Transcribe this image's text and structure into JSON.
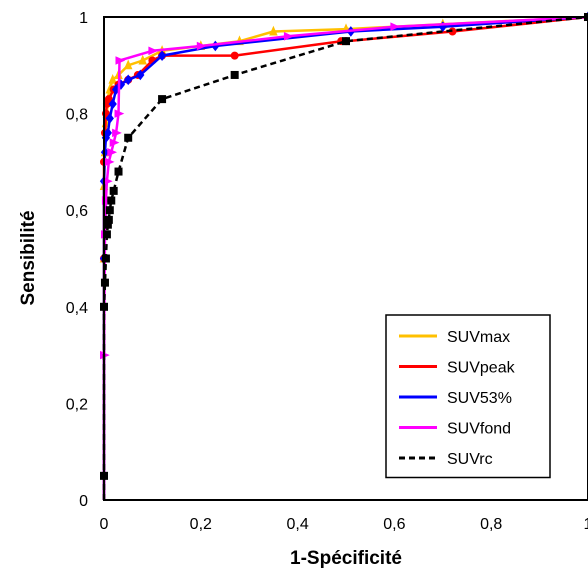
{
  "chart_data": {
    "type": "line",
    "title": "",
    "xlabel": "1-Spécificité",
    "ylabel": "Sensibilité",
    "xlim": [
      0,
      1
    ],
    "ylim": [
      0,
      1
    ],
    "x_ticks": [
      "0",
      "0,2",
      "0,4",
      "0,6",
      "0,8",
      "1"
    ],
    "y_ticks": [
      "0",
      "0,2",
      "0,4",
      "0,6",
      "0,8",
      "1"
    ],
    "grid": false,
    "legend_position": "bottom-right",
    "series": [
      {
        "name": "SUVmax",
        "color": "#ffc000",
        "dash": false,
        "marker": "triangle",
        "x": [
          0,
          0,
          0,
          0.002,
          0.004,
          0.006,
          0.008,
          0.012,
          0.018,
          0.03,
          0.05,
          0.08,
          0.12,
          0.2,
          0.28,
          0.35,
          0.5,
          0.7,
          1.0
        ],
        "y": [
          0,
          0.5,
          0.65,
          0.72,
          0.78,
          0.8,
          0.83,
          0.85,
          0.87,
          0.88,
          0.9,
          0.91,
          0.93,
          0.94,
          0.95,
          0.97,
          0.975,
          0.985,
          1.0
        ]
      },
      {
        "name": "SUVpeak",
        "color": "#ff0000",
        "dash": false,
        "marker": "circle",
        "x": [
          0,
          0,
          0,
          0.002,
          0.004,
          0.006,
          0.01,
          0.02,
          0.03,
          0.05,
          0.07,
          0.1,
          0.12,
          0.27,
          0.49,
          0.5,
          0.72,
          1.0
        ],
        "y": [
          0,
          0.5,
          0.7,
          0.76,
          0.8,
          0.82,
          0.83,
          0.85,
          0.86,
          0.87,
          0.88,
          0.91,
          0.92,
          0.92,
          0.95,
          0.95,
          0.97,
          1.0
        ]
      },
      {
        "name": "SUV53%",
        "color": "#0000ff",
        "dash": false,
        "marker": "diamond",
        "x": [
          0,
          0,
          0,
          0.002,
          0.004,
          0.008,
          0.012,
          0.018,
          0.025,
          0.035,
          0.05,
          0.075,
          0.12,
          0.23,
          0.51,
          0.7,
          1.0
        ],
        "y": [
          0,
          0.5,
          0.66,
          0.72,
          0.75,
          0.76,
          0.79,
          0.82,
          0.85,
          0.86,
          0.87,
          0.88,
          0.92,
          0.94,
          0.97,
          0.98,
          1.0
        ]
      },
      {
        "name": "SUVfond",
        "color": "#ff00ff",
        "dash": false,
        "marker": "triangle-right",
        "x": [
          0,
          0,
          0.002,
          0.004,
          0.006,
          0.01,
          0.015,
          0.02,
          0.025,
          0.03,
          0.032,
          0.1,
          0.2,
          0.38,
          0.6,
          1.0
        ],
        "y": [
          0,
          0.3,
          0.55,
          0.62,
          0.66,
          0.7,
          0.72,
          0.74,
          0.76,
          0.8,
          0.91,
          0.93,
          0.94,
          0.96,
          0.98,
          1.0
        ]
      },
      {
        "name": "SUVrc",
        "color": "#000000",
        "dash": true,
        "marker": "square",
        "x": [
          0,
          0,
          0,
          0.002,
          0.004,
          0.006,
          0.008,
          0.01,
          0.012,
          0.015,
          0.02,
          0.03,
          0.05,
          0.12,
          0.27,
          0.5,
          1.0
        ],
        "y": [
          0,
          0.05,
          0.4,
          0.45,
          0.5,
          0.55,
          0.57,
          0.58,
          0.6,
          0.62,
          0.64,
          0.68,
          0.75,
          0.83,
          0.88,
          0.95,
          1.0
        ]
      }
    ]
  }
}
